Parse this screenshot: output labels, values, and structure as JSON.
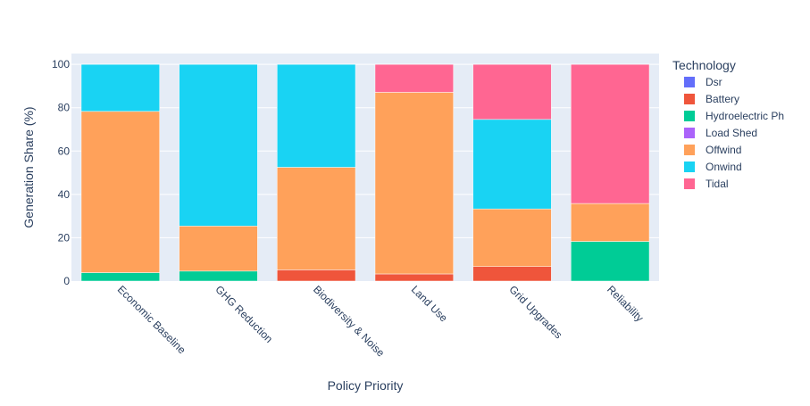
{
  "chart_data": {
    "type": "bar",
    "barmode": "stack",
    "xlabel": "Policy Priority",
    "ylabel": "Generation Share (%)",
    "ylim": [
      0,
      105
    ],
    "yticks": [
      0,
      20,
      40,
      60,
      80,
      100
    ],
    "grid": true,
    "legend": {
      "title": "Technology",
      "placement": "right"
    },
    "categories": [
      "Economic Baseline",
      "GHG Reduction",
      "Biodiversity & Noise",
      "Land Use",
      "Grid Upgrades",
      "Reliability"
    ],
    "series": [
      {
        "name": "Dsr",
        "color": "#636efa",
        "values": [
          0,
          0,
          0,
          0,
          0,
          0
        ]
      },
      {
        "name": "Battery",
        "color": "#ef553b",
        "values": [
          0,
          0,
          5.2,
          3.3,
          6.7,
          0
        ]
      },
      {
        "name": "Hydroelectric Ph",
        "color": "#00cc96",
        "values": [
          3.9,
          4.6,
          0,
          0,
          0,
          18.3
        ]
      },
      {
        "name": "Load Shed",
        "color": "#ab63fa",
        "values": [
          0,
          0,
          0,
          0,
          0,
          0
        ]
      },
      {
        "name": "Offwind",
        "color": "#ffa15a",
        "values": [
          74.4,
          20.8,
          47.3,
          83.8,
          26.6,
          17.5
        ]
      },
      {
        "name": "Onwind",
        "color": "#19d3f3",
        "values": [
          21.7,
          74.6,
          47.5,
          0,
          41.3,
          0
        ]
      },
      {
        "name": "Tidal",
        "color": "#ff6692",
        "values": [
          0,
          0,
          0,
          12.9,
          25.4,
          64.2
        ]
      }
    ]
  }
}
